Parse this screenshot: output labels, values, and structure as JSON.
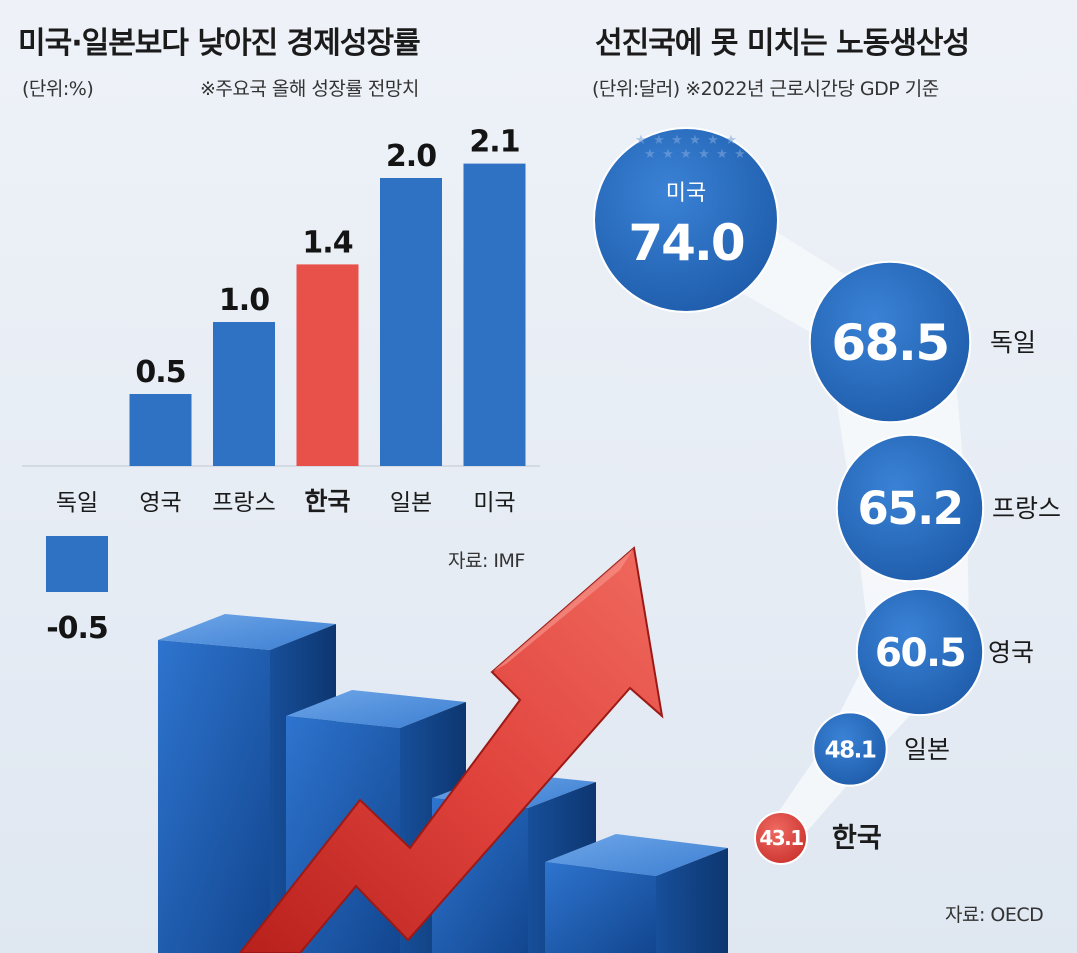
{
  "left": {
    "title": "미국·일본보다 낮아진 경제성장률",
    "unit": "(단위:%)",
    "note": "※주요국 올해 성장률 전망치",
    "source": "자료: IMF"
  },
  "right": {
    "title": "선진국에 못 미치는 노동생산성",
    "subtitle": "(단위:달러) ※2022년 근로시간당 GDP 기준",
    "source": "자료: OECD"
  },
  "colors": {
    "blue": "#2f72c4",
    "blue_dark": "#1f5aa6",
    "red": "#e8504a",
    "background": "#e9eef5"
  },
  "chart_data": [
    {
      "type": "bar",
      "title": "미국·일본보다 낮아진 경제성장률",
      "ylabel": "(단위:%)",
      "note": "※주요국 올해 성장률 전망치",
      "categories": [
        "독일",
        "영국",
        "프랑스",
        "한국",
        "일본",
        "미국"
      ],
      "values": [
        -0.5,
        0.5,
        1.0,
        1.4,
        2.0,
        2.1
      ],
      "value_labels": [
        "-0.5",
        "0.5",
        "1.0",
        "1.4",
        "2.0",
        "2.1"
      ],
      "highlight": "한국",
      "ylim": [
        -0.5,
        2.1
      ],
      "grid": false,
      "source": "자료: IMF"
    },
    {
      "type": "bubble",
      "title": "선진국에 못 미치는 노동생산성",
      "subtitle": "(단위:달러) ※2022년 근로시간당 GDP 기준",
      "categories": [
        "미국",
        "독일",
        "프랑스",
        "영국",
        "일본",
        "한국"
      ],
      "values": [
        74.0,
        68.5,
        65.2,
        60.5,
        48.1,
        43.1
      ],
      "value_labels": [
        "74.0",
        "68.5",
        "65.2",
        "60.5",
        "48.1",
        "43.1"
      ],
      "highlight": "한국",
      "source": "자료: OECD"
    }
  ]
}
